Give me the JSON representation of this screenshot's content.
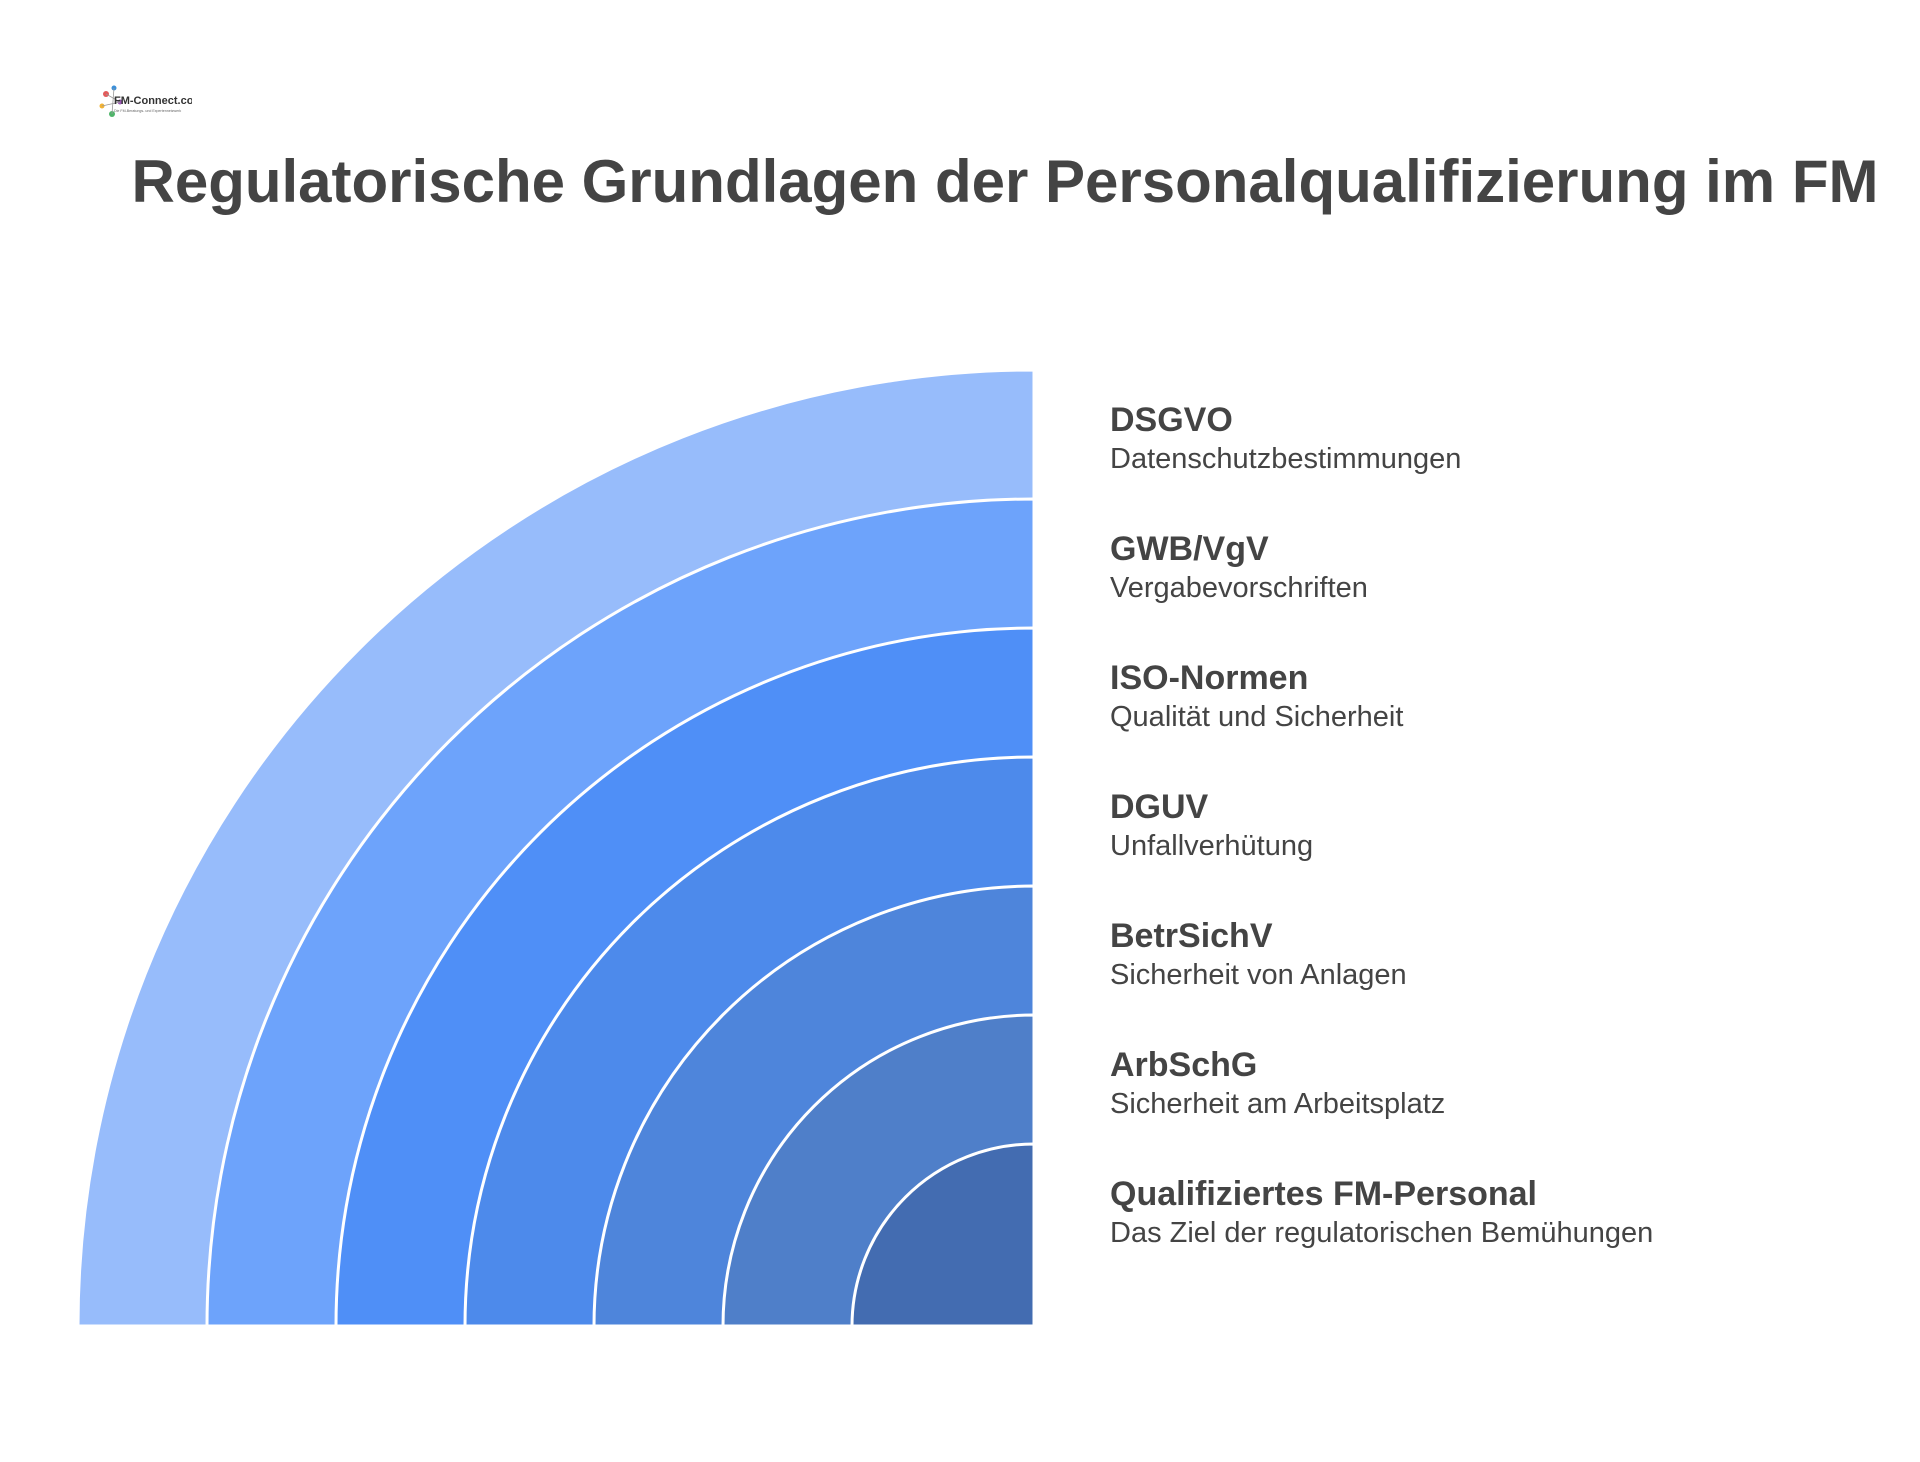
{
  "title": "Regulatorische Grundlagen der Personalqualifizierung im FM",
  "logo": {
    "text": "FM-Connect.com",
    "tagline": "Die FM-Beratungs- und Expertennetzwerk"
  },
  "layers": [
    {
      "title": "DSGVO",
      "description": "Datenschutzbestimmungen",
      "color": "#97BCFB"
    },
    {
      "title": "GWB/VgV",
      "description": "Vergabevorschriften",
      "color": "#6DA3FB"
    },
    {
      "title": "ISO-Normen",
      "description": "Qualität und Sicherheit",
      "color": "#4F8FF7"
    },
    {
      "title": "DGUV",
      "description": "Unfallverhütung",
      "color": "#4D8AEB"
    },
    {
      "title": "BetrSichV",
      "description": "Sicherheit von Anlagen",
      "color": "#4E85DB"
    },
    {
      "title": "ArbSchG",
      "description": "Sicherheit am Arbeitsplatz",
      "color": "#4F7FC9"
    },
    {
      "title": "Qualifiziertes FM-Personal",
      "description": "Das Ziel der regulatorischen Bemühungen",
      "color": "#436CB1"
    }
  ]
}
